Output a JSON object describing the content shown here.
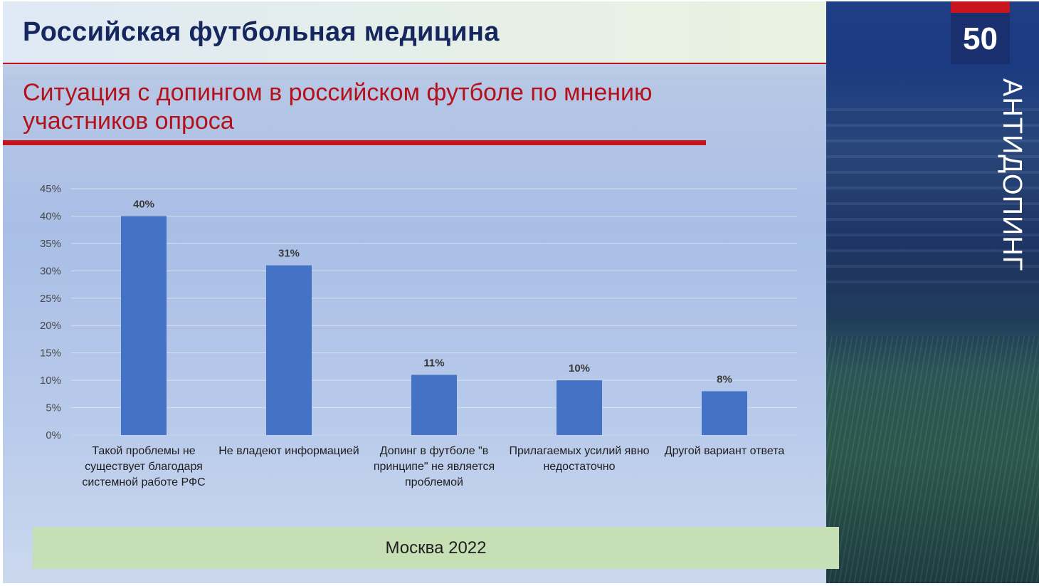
{
  "header": {
    "title": "Российская футбольная медицина"
  },
  "subtitle": "Ситуация с допингом в российском футболе по мнению участников опроса",
  "side_panel": {
    "badge_number": "50",
    "vertical_label": "АНТИДОПИНГ"
  },
  "footer": {
    "text": "Москва 2022"
  },
  "colors": {
    "bar": "#4472c4",
    "title": "#16265e",
    "accent_red": "#c5121c",
    "footer_bg": "#c6dfb5"
  },
  "chart_data": {
    "type": "bar",
    "title": "",
    "xlabel": "",
    "ylabel": "",
    "categories": [
      "Такой проблемы не существует благодаря системной работе РФС",
      "Не владеют информацией",
      "Допинг в футболе \"в принципе\" не является проблемой",
      "Прилагаемых усилий явно недостаточно",
      "Другой вариант ответа"
    ],
    "values": [
      40,
      31,
      11,
      10,
      8
    ],
    "value_labels": [
      "40%",
      "31%",
      "11%",
      "10%",
      "8%"
    ],
    "ylim": [
      0,
      45
    ],
    "yticks": [
      0,
      5,
      10,
      15,
      20,
      25,
      30,
      35,
      40,
      45
    ],
    "ytick_labels": [
      "0%",
      "5%",
      "10%",
      "15%",
      "20%",
      "25%",
      "30%",
      "35%",
      "40%",
      "45%"
    ],
    "grid": true,
    "legend": "none"
  }
}
